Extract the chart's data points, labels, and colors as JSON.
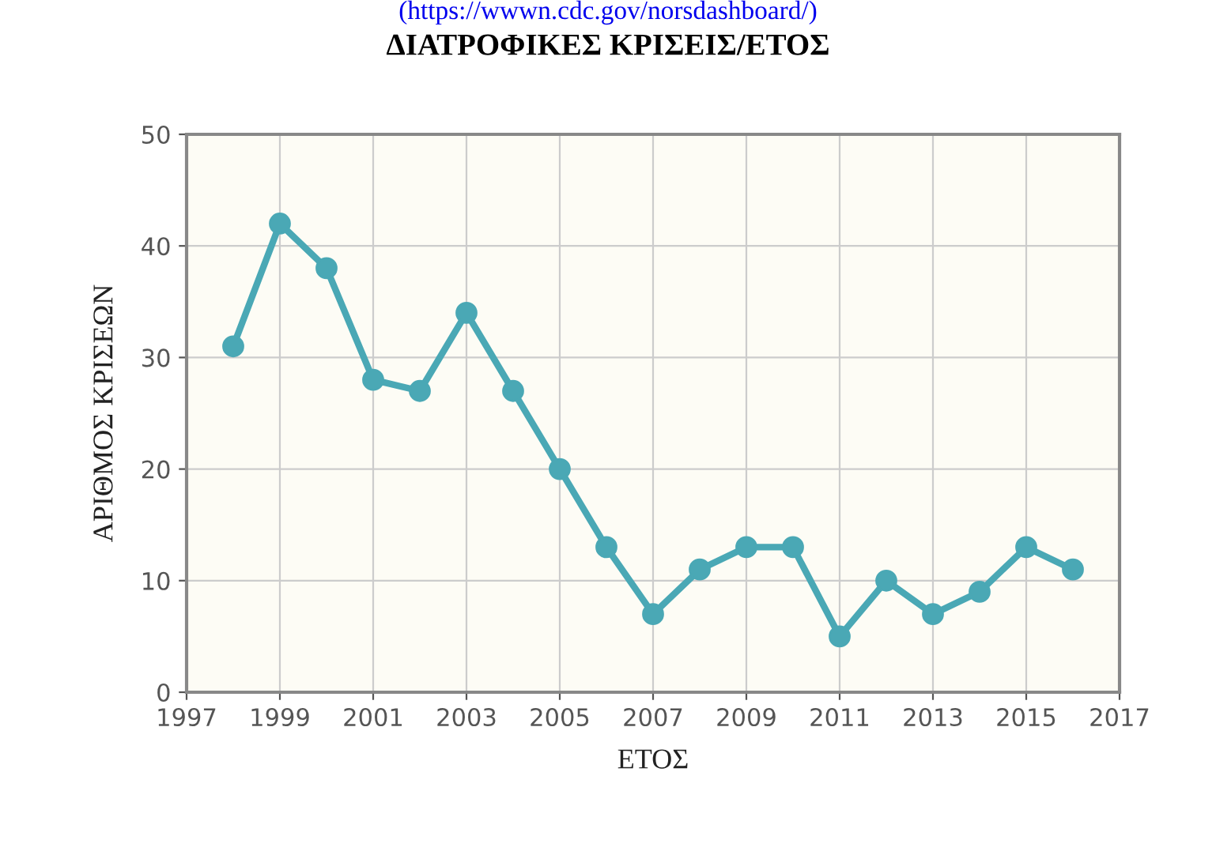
{
  "chart_data": {
    "type": "line",
    "title": "ΔΙΑΤΡΟΦΙΚΕΣ ΚΡΙΣΕΙΣ/ΕΤΟΣ",
    "xlabel": "ΕΤΟΣ",
    "ylabel": "ΑΡΙΘΜΟΣ ΚΡΙΣΕΩΝ",
    "annotations": [
      "(https://wwwn.cdc.gov/norsdashboard/)"
    ],
    "x": [
      1998,
      1999,
      2000,
      2001,
      2002,
      2003,
      2004,
      2005,
      2006,
      2007,
      2008,
      2009,
      2010,
      2011,
      2012,
      2013,
      2014,
      2015,
      2016
    ],
    "series": [
      {
        "color": "#4aa8b5",
        "values": [
          31,
          42,
          38,
          28,
          27,
          34,
          27,
          20,
          13,
          7,
          11,
          13,
          13,
          5,
          10,
          7,
          9,
          13,
          11
        ]
      }
    ],
    "xlim": [
      1997,
      2017
    ],
    "xticks": [
      1997,
      1999,
      2001,
      2003,
      2005,
      2007,
      2009,
      2011,
      2013,
      2015,
      2017
    ],
    "ylim": [
      0,
      50
    ],
    "yticks": [
      0,
      10,
      20,
      30,
      40,
      50
    ],
    "grid": true,
    "marker": "circle",
    "line_style": "solid",
    "legend": false
  }
}
